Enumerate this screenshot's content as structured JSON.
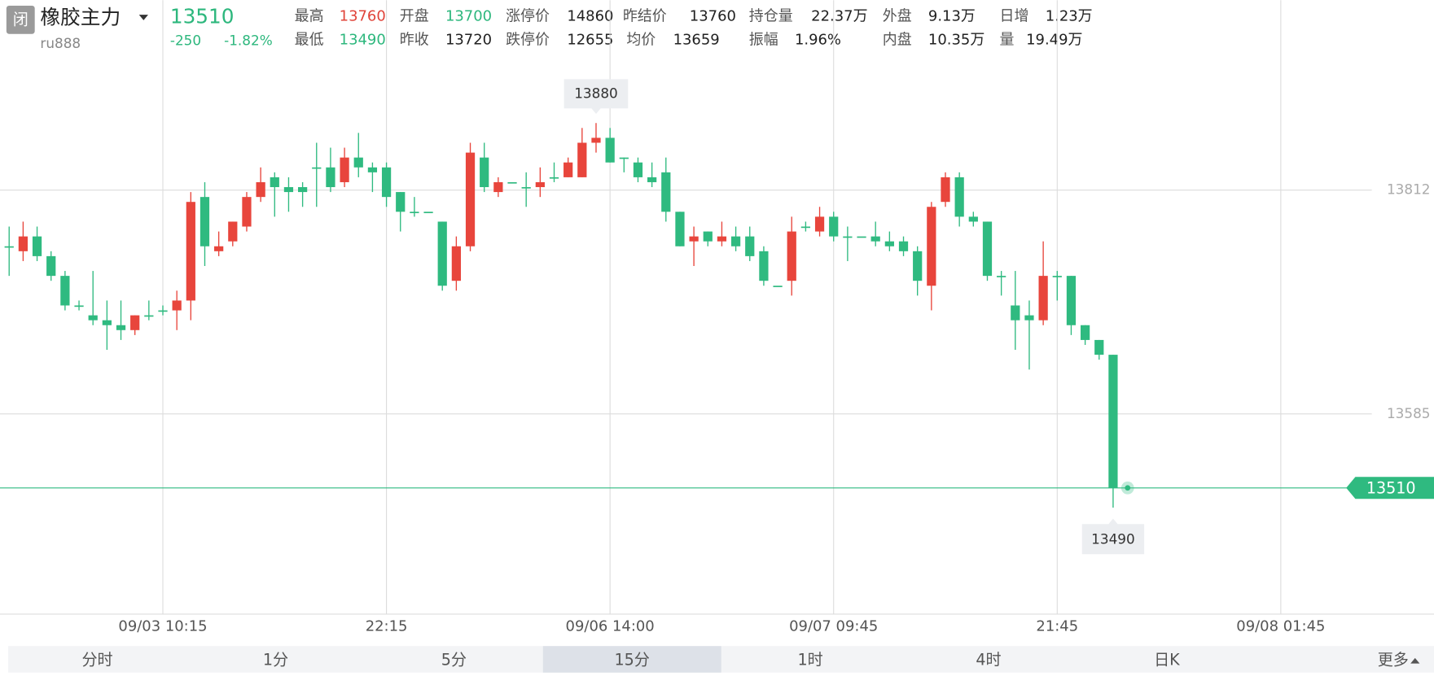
{
  "header": {
    "badge": "闭",
    "name": "橡胶主力",
    "code": "ru888",
    "price": "13510",
    "change": "-250",
    "change_pct": "-1.82%",
    "stats": [
      [
        {
          "label": "最高",
          "value": "13760",
          "color": "#e0443a"
        },
        {
          "label": "开盘",
          "value": "13700",
          "color": "#2db77d"
        },
        {
          "label": "涨停价",
          "value": "14860"
        },
        {
          "label": "昨结价",
          "value": "13760"
        },
        {
          "label": "持仓量",
          "value": "22.37万"
        },
        {
          "label": "外盘",
          "value": "9.13万"
        },
        {
          "label": "日增",
          "value": "1.23万"
        }
      ],
      [
        {
          "label": "最低",
          "value": "13490",
          "color": "#2db77d"
        },
        {
          "label": "昨收",
          "value": "13720"
        },
        {
          "label": "跌停价",
          "value": "12655"
        },
        {
          "label": "均价",
          "value": "13659"
        },
        {
          "label": "振幅",
          "value": "1.96%"
        },
        {
          "label": "内盘",
          "value": "10.35万"
        },
        {
          "label": "量",
          "value": "19.49万"
        }
      ]
    ]
  },
  "chart_data": {
    "type": "candlestick",
    "up_color": "#e8453c",
    "down_color": "#2fba80",
    "grid": true,
    "ylim": [
      13382,
      13949
    ],
    "yticks": [
      13585,
      13812
    ],
    "categories": [
      null,
      null,
      null,
      null,
      null,
      null,
      null,
      null,
      null,
      null,
      null,
      "09/03 10:15",
      null,
      null,
      null,
      null,
      null,
      null,
      null,
      null,
      null,
      null,
      null,
      null,
      null,
      null,
      null,
      "22:15",
      null,
      null,
      null,
      null,
      null,
      null,
      null,
      null,
      null,
      null,
      null,
      null,
      null,
      null,
      null,
      "09/06 14:00",
      null,
      null,
      null,
      null,
      null,
      null,
      null,
      null,
      null,
      null,
      null,
      null,
      null,
      null,
      null,
      "09/07 09:45",
      null,
      null,
      null,
      null,
      null,
      null,
      null,
      null,
      null,
      null,
      null,
      null,
      null,
      null,
      null,
      "21:45",
      null,
      null,
      null,
      null,
      null,
      null,
      null,
      null,
      null,
      null,
      null,
      null,
      null,
      null,
      null,
      "09/08 01:45"
    ],
    "open": [
      13755,
      13750,
      13765,
      13745,
      13725,
      13695,
      13685,
      13680,
      13675,
      13670,
      13685,
      13690,
      13690,
      13700,
      13805,
      13750,
      13760,
      13775,
      13805,
      13825,
      13815,
      13815,
      13835,
      13835,
      13820,
      13845,
      13835,
      13835,
      13810,
      13790,
      13790,
      13780,
      13720,
      13755,
      13845,
      13810,
      13820,
      13815,
      13815,
      13825,
      13825,
      13825,
      13860,
      13865,
      13845,
      13840,
      13825,
      13830,
      13790,
      13760,
      13770,
      13760,
      13765,
      13765,
      13750,
      13715,
      13720,
      13775,
      13770,
      13785,
      13765,
      13765,
      13765,
      13760,
      13760,
      13750,
      13715,
      13800,
      13825,
      13785,
      13780,
      13725,
      13695,
      13685,
      13680,
      13725,
      13725,
      13675,
      13660,
      13645,
      null,
      null,
      null,
      null,
      null,
      null,
      null,
      null,
      null,
      null,
      null,
      null
    ],
    "high": [
      13775,
      13780,
      13775,
      13750,
      13730,
      13700,
      13730,
      13700,
      13700,
      13685,
      13700,
      13695,
      13710,
      13810,
      13820,
      13770,
      13780,
      13810,
      13835,
      13830,
      13825,
      13820,
      13860,
      13855,
      13855,
      13870,
      13840,
      13840,
      13810,
      13805,
      13790,
      13780,
      13765,
      13860,
      13860,
      13825,
      13820,
      13830,
      13835,
      13840,
      13845,
      13875,
      13880,
      13875,
      13845,
      13845,
      13840,
      13845,
      13790,
      13775,
      13770,
      13780,
      13775,
      13775,
      13755,
      13715,
      13785,
      13780,
      13795,
      13790,
      13775,
      13765,
      13780,
      13770,
      13765,
      13755,
      13800,
      13830,
      13830,
      13790,
      13780,
      13730,
      13730,
      13700,
      13760,
      13730,
      13725,
      13675,
      13660,
      13645,
      null,
      null,
      null,
      null,
      null,
      null,
      null,
      null,
      null,
      null,
      null,
      null
    ],
    "low": [
      13725,
      13740,
      13740,
      13720,
      13690,
      13690,
      13675,
      13650,
      13660,
      13665,
      13680,
      13685,
      13670,
      13680,
      13735,
      13745,
      13755,
      13770,
      13800,
      13785,
      13790,
      13795,
      13795,
      13810,
      13815,
      13825,
      13810,
      13795,
      13770,
      13785,
      13790,
      13710,
      13710,
      13750,
      13810,
      13805,
      13820,
      13795,
      13805,
      13820,
      13825,
      13825,
      13850,
      13840,
      13830,
      13820,
      13815,
      13780,
      13755,
      13735,
      13755,
      13755,
      13750,
      13740,
      13715,
      13715,
      13705,
      13770,
      13765,
      13760,
      13740,
      13765,
      13755,
      13750,
      13745,
      13705,
      13690,
      13795,
      13775,
      13775,
      13720,
      13705,
      13650,
      13630,
      13675,
      13700,
      13665,
      13655,
      13640,
      13490,
      null,
      null,
      null,
      null,
      null,
      null,
      null,
      null,
      null,
      null,
      null,
      null
    ],
    "close": [
      13755,
      13765,
      13745,
      13725,
      13695,
      13695,
      13680,
      13675,
      13670,
      13685,
      13685,
      13690,
      13700,
      13800,
      13755,
      13755,
      13780,
      13805,
      13820,
      13815,
      13810,
      13810,
      13835,
      13815,
      13845,
      13835,
      13830,
      13805,
      13790,
      13790,
      13790,
      13715,
      13755,
      13850,
      13815,
      13820,
      13820,
      13815,
      13820,
      13825,
      13840,
      13860,
      13865,
      13840,
      13845,
      13825,
      13820,
      13790,
      13755,
      13765,
      13760,
      13765,
      13755,
      13745,
      13720,
      13715,
      13770,
      13775,
      13785,
      13765,
      13765,
      13765,
      13760,
      13755,
      13750,
      13720,
      13795,
      13825,
      13785,
      13780,
      13725,
      13725,
      13680,
      13680,
      13725,
      13725,
      13675,
      13660,
      13645,
      13510,
      null,
      null,
      null,
      null,
      null,
      null,
      null,
      null,
      null,
      null,
      null,
      null
    ],
    "high_marker": 13880,
    "low_marker": 13490,
    "last_price": 13510
  },
  "tabs": {
    "items": [
      "分时",
      "1分",
      "5分",
      "15分",
      "1时",
      "4时",
      "日K",
      "更多"
    ],
    "active": 3
  }
}
